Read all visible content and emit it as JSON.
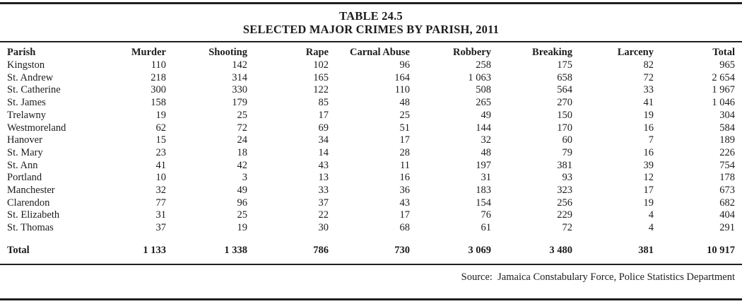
{
  "table": {
    "title_line1": "TABLE 24.5",
    "title_line2": "SELECTED MAJOR CRIMES BY PARISH, 2011",
    "columns": [
      "Parish",
      "Murder",
      "Shooting",
      "Rape",
      "Carnal Abuse",
      "Robbery",
      "Breaking",
      "Larceny",
      "Total"
    ],
    "rows": [
      {
        "parish": "Kingston",
        "values": [
          "110",
          "142",
          "102",
          "96",
          "258",
          "175",
          "82",
          "965"
        ]
      },
      {
        "parish": "St. Andrew",
        "values": [
          "218",
          "314",
          "165",
          "164",
          "1 063",
          "658",
          "72",
          "2 654"
        ]
      },
      {
        "parish": "St. Catherine",
        "values": [
          "300",
          "330",
          "122",
          "110",
          "508",
          "564",
          "33",
          "1 967"
        ]
      },
      {
        "parish": "St. James",
        "values": [
          "158",
          "179",
          "85",
          "48",
          "265",
          "270",
          "41",
          "1 046"
        ]
      },
      {
        "parish": "Trelawny",
        "values": [
          "19",
          "25",
          "17",
          "25",
          "49",
          "150",
          "19",
          "304"
        ]
      },
      {
        "parish": "Westmoreland",
        "values": [
          "62",
          "72",
          "69",
          "51",
          "144",
          "170",
          "16",
          "584"
        ]
      },
      {
        "parish": "Hanover",
        "values": [
          "15",
          "24",
          "34",
          "17",
          "32",
          "60",
          "7",
          "189"
        ]
      },
      {
        "parish": "St. Mary",
        "values": [
          "23",
          "18",
          "14",
          "28",
          "48",
          "79",
          "16",
          "226"
        ]
      },
      {
        "parish": "St. Ann",
        "values": [
          "41",
          "42",
          "43",
          "11",
          "197",
          "381",
          "39",
          "754"
        ]
      },
      {
        "parish": "Portland",
        "values": [
          "10",
          "3",
          "13",
          "16",
          "31",
          "93",
          "12",
          "178"
        ]
      },
      {
        "parish": "Manchester",
        "values": [
          "32",
          "49",
          "33",
          "36",
          "183",
          "323",
          "17",
          "673"
        ]
      },
      {
        "parish": "Clarendon",
        "values": [
          "77",
          "96",
          "37",
          "43",
          "154",
          "256",
          "19",
          "682"
        ]
      },
      {
        "parish": "St. Elizabeth",
        "values": [
          "31",
          "25",
          "22",
          "17",
          "76",
          "229",
          "4",
          "404"
        ]
      },
      {
        "parish": "St. Thomas",
        "values": [
          "37",
          "19",
          "30",
          "68",
          "61",
          "72",
          "4",
          "291"
        ]
      }
    ],
    "total_row": {
      "label": "Total",
      "values": [
        "1 133",
        "1 338",
        "786",
        "730",
        "3 069",
        "3 480",
        "381",
        "10 917"
      ]
    },
    "source": "Source:  Jamaica Constabulary Force, Police Statistics Department"
  }
}
